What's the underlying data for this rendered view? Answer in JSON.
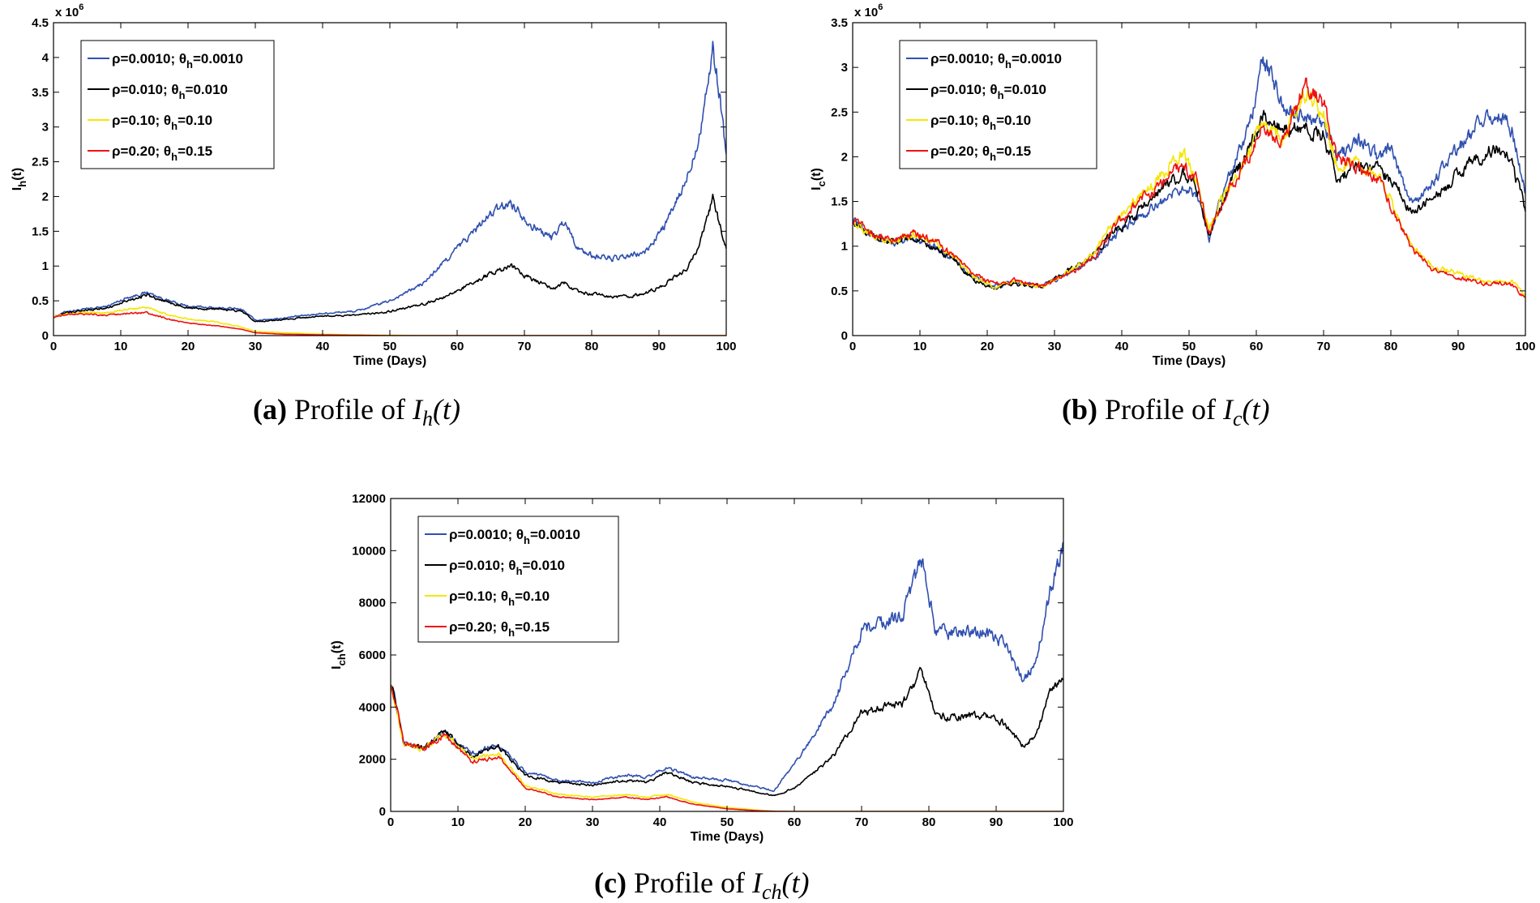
{
  "colors": {
    "series": [
      "#3050b0",
      "#000000",
      "#f5e600",
      "#ee1111"
    ]
  },
  "legend_labels": [
    {
      "rho": "ρ=0.0010; ",
      "theta": "θ",
      "sub": "h",
      "rest": "=0.0010"
    },
    {
      "rho": "ρ=0.010; ",
      "theta": "θ",
      "sub": "h",
      "rest": "=0.010"
    },
    {
      "rho": "ρ=0.10; ",
      "theta": "θ",
      "sub": "h",
      "rest": "=0.10"
    },
    {
      "rho": "ρ=0.20; ",
      "theta": "θ",
      "sub": "h",
      "rest": "=0.15"
    }
  ],
  "chart_data": [
    {
      "id": "a",
      "type": "line",
      "xlabel": "Time (Days)",
      "ylabel_main": "I",
      "ylabel_sub": "h",
      "ylabel_tail": "(t)",
      "exponent_label": "x 10",
      "exponent_power": "6",
      "xlim": [
        0,
        100
      ],
      "ylim": [
        0,
        4.5
      ],
      "xticks": [
        0,
        10,
        20,
        30,
        40,
        50,
        60,
        70,
        80,
        90,
        100
      ],
      "yticks": [
        0,
        0.5,
        1,
        1.5,
        2,
        2.5,
        3,
        3.5,
        4,
        4.5
      ],
      "ytick_labels": [
        "0",
        "0.5",
        "1",
        "1.5",
        "2",
        "2.5",
        "3",
        "3.5",
        "4",
        "4.5"
      ],
      "x": [
        0,
        2,
        5,
        8,
        11,
        14,
        17,
        20,
        24,
        28,
        30,
        34,
        40,
        45,
        50,
        55,
        58,
        62,
        65,
        68,
        71,
        74,
        76,
        78,
        80,
        84,
        88,
        91,
        94,
        96,
        98,
        99,
        100
      ],
      "series": [
        {
          "name": "ρ=0.0010; θh=0.0010",
          "values": [
            0.27,
            0.35,
            0.38,
            0.42,
            0.55,
            0.62,
            0.5,
            0.42,
            0.4,
            0.38,
            0.22,
            0.25,
            0.32,
            0.35,
            0.5,
            0.75,
            1.05,
            1.45,
            1.75,
            1.92,
            1.6,
            1.4,
            1.65,
            1.25,
            1.15,
            1.1,
            1.2,
            1.6,
            2.2,
            2.9,
            4.1,
            3.5,
            2.6
          ]
        },
        {
          "name": "ρ=0.010; θh=0.010",
          "values": [
            0.27,
            0.33,
            0.36,
            0.4,
            0.5,
            0.58,
            0.48,
            0.4,
            0.38,
            0.35,
            0.2,
            0.23,
            0.28,
            0.29,
            0.35,
            0.45,
            0.55,
            0.75,
            0.9,
            1.0,
            0.82,
            0.68,
            0.75,
            0.62,
            0.6,
            0.55,
            0.6,
            0.75,
            0.95,
            1.3,
            1.95,
            1.6,
            1.25
          ]
        },
        {
          "name": "ρ=0.10; θh=0.10",
          "values": [
            0.27,
            0.32,
            0.34,
            0.33,
            0.38,
            0.4,
            0.3,
            0.24,
            0.2,
            0.12,
            0.06,
            0.04,
            0.02,
            0.01,
            0.005,
            0,
            0,
            0,
            0,
            0,
            0,
            0,
            0,
            0,
            0,
            0,
            0,
            0,
            0,
            0,
            0,
            0,
            0
          ]
        },
        {
          "name": "ρ=0.20; θh=0.15",
          "values": [
            0.27,
            0.3,
            0.31,
            0.29,
            0.32,
            0.33,
            0.24,
            0.18,
            0.14,
            0.09,
            0.04,
            0.02,
            0.01,
            0.005,
            0,
            0,
            0,
            0,
            0,
            0,
            0,
            0,
            0,
            0,
            0,
            0,
            0,
            0,
            0,
            0,
            0,
            0,
            0
          ]
        }
      ]
    },
    {
      "id": "b",
      "type": "line",
      "xlabel": "Time (Days)",
      "ylabel_main": "I",
      "ylabel_sub": "c",
      "ylabel_tail": "(t)",
      "exponent_label": "x 10",
      "exponent_power": "6",
      "xlim": [
        0,
        100
      ],
      "ylim": [
        0,
        3.5
      ],
      "xticks": [
        0,
        10,
        20,
        30,
        40,
        50,
        60,
        70,
        80,
        90,
        100
      ],
      "yticks": [
        0,
        0.5,
        1,
        1.5,
        2,
        2.5,
        3,
        3.5
      ],
      "ytick_labels": [
        "0",
        "0.5",
        "1",
        "1.5",
        "2",
        "2.5",
        "3",
        "3.5"
      ],
      "x": [
        0,
        3,
        6,
        9,
        12,
        15,
        18,
        21,
        24,
        28,
        32,
        36,
        38,
        42,
        46,
        49,
        51,
        53,
        56,
        59,
        61,
        64,
        67,
        70,
        72,
        75,
        78,
        80,
        83,
        86,
        90,
        94,
        96,
        98,
        100
      ],
      "series": [
        {
          "name": "ρ=0.0010; θh=0.0010",
          "values": [
            1.3,
            1.1,
            1.05,
            1.1,
            1.0,
            0.85,
            0.65,
            0.55,
            0.6,
            0.55,
            0.7,
            0.85,
            1.05,
            1.3,
            1.5,
            1.65,
            1.6,
            1.1,
            1.8,
            2.3,
            3.15,
            2.6,
            2.45,
            2.35,
            2.0,
            2.2,
            2.0,
            2.1,
            1.5,
            1.7,
            2.1,
            2.45,
            2.5,
            2.3,
            1.6
          ]
        },
        {
          "name": "ρ=0.010; θh=0.010",
          "values": [
            1.3,
            1.1,
            1.05,
            1.1,
            1.0,
            0.85,
            0.62,
            0.52,
            0.58,
            0.55,
            0.72,
            0.9,
            1.1,
            1.35,
            1.65,
            1.8,
            1.7,
            1.1,
            1.7,
            2.1,
            2.45,
            2.3,
            2.3,
            2.25,
            1.75,
            1.9,
            1.85,
            1.75,
            1.4,
            1.5,
            1.8,
            2.05,
            2.1,
            1.9,
            1.4
          ]
        },
        {
          "name": "ρ=0.10; θh=0.10",
          "values": [
            1.3,
            1.1,
            1.05,
            1.12,
            1.05,
            0.88,
            0.65,
            0.55,
            0.6,
            0.55,
            0.7,
            0.92,
            1.2,
            1.5,
            1.8,
            2.05,
            1.8,
            1.2,
            1.7,
            2.05,
            2.4,
            2.2,
            2.75,
            2.5,
            1.9,
            1.95,
            1.8,
            1.5,
            1.0,
            0.78,
            0.7,
            0.6,
            0.62,
            0.6,
            0.45
          ]
        },
        {
          "name": "ρ=0.20; θh=0.15",
          "values": [
            1.3,
            1.12,
            1.06,
            1.14,
            1.07,
            0.9,
            0.68,
            0.58,
            0.62,
            0.56,
            0.68,
            0.88,
            1.15,
            1.45,
            1.7,
            1.9,
            1.75,
            1.15,
            1.65,
            2.0,
            2.35,
            2.15,
            2.8,
            2.6,
            1.95,
            1.9,
            1.75,
            1.45,
            0.98,
            0.75,
            0.65,
            0.58,
            0.6,
            0.57,
            0.42
          ]
        }
      ]
    },
    {
      "id": "c",
      "type": "line",
      "xlabel": "Time (Days)",
      "ylabel_main": "I",
      "ylabel_sub": "ch",
      "ylabel_tail": "(t)",
      "exponent_label": "",
      "exponent_power": "",
      "xlim": [
        0,
        100
      ],
      "ylim": [
        0,
        12000
      ],
      "xticks": [
        0,
        10,
        20,
        30,
        40,
        50,
        60,
        70,
        80,
        90,
        100
      ],
      "yticks": [
        0,
        2000,
        4000,
        6000,
        8000,
        10000,
        12000
      ],
      "ytick_labels": [
        "0",
        "2000",
        "4000",
        "6000",
        "8000",
        "10000",
        "12000"
      ],
      "x": [
        0,
        2,
        5,
        8,
        12,
        16,
        20,
        25,
        30,
        35,
        38,
        41,
        45,
        50,
        55,
        57,
        60,
        63,
        66,
        70,
        73,
        76,
        79,
        81,
        84,
        88,
        91,
        94,
        96,
        98,
        100
      ],
      "series": [
        {
          "name": "ρ=0.0010; θh=0.0010",
          "values": [
            5000,
            2600,
            2400,
            3100,
            2200,
            2600,
            1500,
            1200,
            1100,
            1400,
            1300,
            1700,
            1300,
            1200,
            900,
            800,
            1800,
            3000,
            4200,
            7000,
            7200,
            7500,
            9700,
            7000,
            6800,
            6900,
            6500,
            5000,
            5800,
            8500,
            10200
          ]
        },
        {
          "name": "ρ=0.010; θh=0.010",
          "values": [
            5000,
            2600,
            2400,
            3100,
            2100,
            2500,
            1400,
            1100,
            1000,
            1200,
            1100,
            1500,
            1100,
            950,
            700,
            600,
            900,
            1500,
            2200,
            3800,
            4000,
            4100,
            5400,
            3700,
            3600,
            3700,
            3400,
            2500,
            3000,
            4500,
            5100
          ]
        },
        {
          "name": "ρ=0.10; θh=0.10",
          "values": [
            5000,
            2600,
            2400,
            3000,
            2000,
            2200,
            1000,
            650,
            550,
            650,
            550,
            650,
            350,
            150,
            40,
            10,
            0,
            0,
            0,
            0,
            0,
            0,
            0,
            0,
            0,
            0,
            0,
            0,
            0,
            0,
            0
          ]
        },
        {
          "name": "ρ=0.20; θh=0.15",
          "values": [
            5000,
            2600,
            2380,
            2950,
            1900,
            2100,
            900,
            550,
            450,
            550,
            450,
            550,
            280,
            100,
            20,
            5,
            0,
            0,
            0,
            0,
            0,
            0,
            0,
            0,
            0,
            0,
            0,
            0,
            0,
            0,
            0
          ]
        }
      ]
    }
  ],
  "captions": [
    {
      "letter": "(a)",
      "text": " Profile of ",
      "math_main": "I",
      "math_sub": "h",
      "math_tail": "(t)"
    },
    {
      "letter": "(b)",
      "text": " Profile of ",
      "math_main": "I",
      "math_sub": "c",
      "math_tail": "(t)"
    },
    {
      "letter": "(c)",
      "text": " Profile of ",
      "math_main": "I",
      "math_sub": "ch",
      "math_tail": "(t)"
    }
  ]
}
